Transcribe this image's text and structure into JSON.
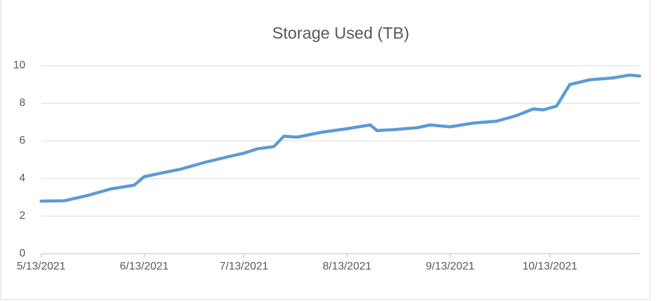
{
  "chart_data": {
    "type": "line",
    "title": "Storage Used (TB)",
    "x": [
      "5/13/2021",
      "5/20/2021",
      "5/27/2021",
      "6/3/2021",
      "6/10/2021",
      "6/13/2021",
      "6/17/2021",
      "6/24/2021",
      "7/1/2021",
      "7/8/2021",
      "7/13/2021",
      "7/17/2021",
      "7/22/2021",
      "7/25/2021",
      "7/29/2021",
      "8/5/2021",
      "8/13/2021",
      "8/20/2021",
      "8/22/2021",
      "8/27/2021",
      "9/3/2021",
      "9/7/2021",
      "9/13/2021",
      "9/20/2021",
      "9/27/2021",
      "10/3/2021",
      "10/8/2021",
      "10/11/2021",
      "10/15/2021",
      "10/19/2021",
      "10/25/2021",
      "11/1/2021",
      "11/6/2021",
      "11/9/2021"
    ],
    "series": [
      {
        "name": "Storage Used (TB)",
        "color": "#5b9bd5",
        "values": [
          2.8,
          2.82,
          3.1,
          3.45,
          3.65,
          4.1,
          4.25,
          4.5,
          4.85,
          5.15,
          5.35,
          5.58,
          5.7,
          6.25,
          6.2,
          6.45,
          6.65,
          6.85,
          6.55,
          6.6,
          6.7,
          6.85,
          6.75,
          6.95,
          7.05,
          7.35,
          7.7,
          7.65,
          7.85,
          9.0,
          9.25,
          9.35,
          9.5,
          9.45
        ]
      }
    ],
    "xlim": [
      "5/13/2021",
      "11/9/2021"
    ],
    "xticks": [
      "5/13/2021",
      "6/13/2021",
      "7/13/2021",
      "8/13/2021",
      "9/13/2021",
      "10/13/2021"
    ],
    "ylim": [
      0,
      10
    ],
    "yticks": [
      0,
      2,
      4,
      6,
      8,
      10
    ],
    "grid": true
  }
}
